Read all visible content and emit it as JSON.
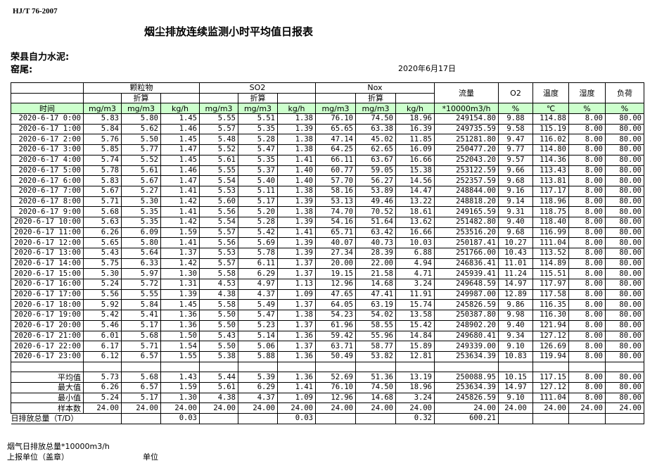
{
  "header": {
    "standard": "HJ/T  76-2007",
    "title": "烟尘排放连续监测小时平均值日报表",
    "company": "荣县自力水泥:",
    "kiln": "窑尾:",
    "date": "2020年6月17日"
  },
  "table": {
    "groups": {
      "particulate": "颗粒物",
      "so2": "SO2",
      "nox": "Nox",
      "converted": "折算",
      "flow": "流量",
      "o2": "O2",
      "temp": "温度",
      "humidity": "湿度",
      "load": "负荷"
    },
    "units": [
      "时间",
      "mg/m3",
      "mg/m3",
      "kg/h",
      "mg/m3",
      "mg/m3",
      "kg/h",
      "mg/m3",
      "mg/m3",
      "kg/h",
      "*10000m3/h",
      "%",
      "℃",
      "%",
      "%"
    ],
    "rows": [
      [
        "2020-6-17 0:00",
        "5.83",
        "5.80",
        "1.45",
        "5.55",
        "5.51",
        "1.38",
        "76.10",
        "74.50",
        "18.96",
        "249154.80",
        "9.88",
        "114.88",
        "8.00",
        "80.00"
      ],
      [
        "2020-6-17 1:00",
        "5.84",
        "5.62",
        "1.46",
        "5.57",
        "5.35",
        "1.39",
        "65.65",
        "63.38",
        "16.39",
        "249735.59",
        "9.58",
        "115.19",
        "8.00",
        "80.00"
      ],
      [
        "2020-6-17 2:00",
        "5.76",
        "5.50",
        "1.45",
        "5.48",
        "5.28",
        "1.38",
        "47.14",
        "45.02",
        "11.85",
        "251281.80",
        "9.47",
        "116.02",
        "8.00",
        "80.00"
      ],
      [
        "2020-6-17 3:00",
        "5.85",
        "5.77",
        "1.47",
        "5.52",
        "5.47",
        "1.38",
        "64.25",
        "62.65",
        "16.09",
        "250477.20",
        "9.77",
        "114.80",
        "8.00",
        "80.00"
      ],
      [
        "2020-6-17 4:00",
        "5.74",
        "5.52",
        "1.45",
        "5.61",
        "5.35",
        "1.41",
        "66.11",
        "63.67",
        "16.66",
        "252043.20",
        "9.57",
        "114.36",
        "8.00",
        "80.00"
      ],
      [
        "2020-6-17 5:00",
        "5.78",
        "5.61",
        "1.46",
        "5.55",
        "5.37",
        "1.40",
        "60.77",
        "59.05",
        "15.38",
        "253122.59",
        "9.66",
        "113.43",
        "8.00",
        "80.00"
      ],
      [
        "2020-6-17 6:00",
        "5.83",
        "5.67",
        "1.47",
        "5.54",
        "5.40",
        "1.40",
        "57.70",
        "56.27",
        "14.56",
        "252357.59",
        "9.68",
        "113.81",
        "8.00",
        "80.00"
      ],
      [
        "2020-6-17 7:00",
        "5.67",
        "5.27",
        "1.41",
        "5.53",
        "5.11",
        "1.38",
        "58.16",
        "53.89",
        "14.47",
        "248844.00",
        "9.16",
        "117.17",
        "8.00",
        "80.00"
      ],
      [
        "2020-6-17 8:00",
        "5.71",
        "5.30",
        "1.42",
        "5.60",
        "5.17",
        "1.39",
        "53.13",
        "49.46",
        "13.22",
        "248818.20",
        "9.14",
        "118.96",
        "8.00",
        "80.00"
      ],
      [
        "2020-6-17 9:00",
        "5.68",
        "5.35",
        "1.41",
        "5.56",
        "5.20",
        "1.38",
        "74.70",
        "70.52",
        "18.61",
        "249165.59",
        "9.31",
        "118.75",
        "8.00",
        "80.00"
      ],
      [
        "2020-6-17 10:00",
        "5.63",
        "5.35",
        "1.42",
        "5.54",
        "5.28",
        "1.39",
        "54.16",
        "51.64",
        "13.62",
        "251482.80",
        "9.40",
        "118.40",
        "8.00",
        "80.00"
      ],
      [
        "2020-6-17 11:00",
        "6.26",
        "6.09",
        "1.59",
        "5.57",
        "5.42",
        "1.41",
        "65.71",
        "63.42",
        "16.66",
        "253516.20",
        "9.68",
        "116.99",
        "8.00",
        "80.00"
      ],
      [
        "2020-6-17 12:00",
        "5.65",
        "5.80",
        "1.41",
        "5.56",
        "5.69",
        "1.39",
        "40.07",
        "40.73",
        "10.03",
        "250187.41",
        "10.27",
        "111.04",
        "8.00",
        "80.00"
      ],
      [
        "2020-6-17 13:00",
        "5.43",
        "5.64",
        "1.37",
        "5.53",
        "5.78",
        "1.39",
        "27.34",
        "28.39",
        "6.88",
        "251766.00",
        "10.43",
        "113.52",
        "8.00",
        "80.00"
      ],
      [
        "2020-6-17 14:00",
        "5.75",
        "6.33",
        "1.42",
        "5.57",
        "6.11",
        "1.37",
        "20.00",
        "22.00",
        "4.94",
        "246836.41",
        "11.01",
        "114.89",
        "8.00",
        "80.00"
      ],
      [
        "2020-6-17 15:00",
        "5.30",
        "5.97",
        "1.30",
        "5.58",
        "6.29",
        "1.37",
        "19.15",
        "21.58",
        "4.71",
        "245939.41",
        "11.24",
        "115.51",
        "8.00",
        "80.00"
      ],
      [
        "2020-6-17 16:00",
        "5.24",
        "5.72",
        "1.31",
        "4.53",
        "4.97",
        "1.13",
        "12.96",
        "14.68",
        "3.24",
        "249648.59",
        "14.97",
        "117.97",
        "8.00",
        "80.00"
      ],
      [
        "2020-6-17 17:00",
        "5.56",
        "5.55",
        "1.39",
        "4.38",
        "4.37",
        "1.09",
        "47.65",
        "47.41",
        "11.91",
        "249987.00",
        "12.89",
        "117.58",
        "8.00",
        "80.00"
      ],
      [
        "2020-6-17 18:00",
        "5.92",
        "5.84",
        "1.45",
        "5.58",
        "5.49",
        "1.37",
        "64.05",
        "63.19",
        "15.74",
        "245826.59",
        "9.86",
        "116.35",
        "8.00",
        "80.00"
      ],
      [
        "2020-6-17 19:00",
        "5.42",
        "5.41",
        "1.36",
        "5.50",
        "5.47",
        "1.38",
        "54.23",
        "54.02",
        "13.58",
        "250387.80",
        "9.98",
        "116.30",
        "8.00",
        "80.00"
      ],
      [
        "2020-6-17 20:00",
        "5.46",
        "5.17",
        "1.36",
        "5.50",
        "5.23",
        "1.37",
        "61.96",
        "58.55",
        "15.42",
        "248902.20",
        "9.40",
        "121.94",
        "8.00",
        "80.00"
      ],
      [
        "2020-6-17 21:00",
        "6.01",
        "5.68",
        "1.50",
        "5.43",
        "5.14",
        "1.36",
        "59.42",
        "55.96",
        "14.84",
        "249680.41",
        "9.34",
        "127.12",
        "8.00",
        "80.00"
      ],
      [
        "2020-6-17 22:00",
        "6.17",
        "5.71",
        "1.54",
        "5.50",
        "5.06",
        "1.37",
        "63.71",
        "58.77",
        "15.89",
        "249339.00",
        "9.10",
        "126.69",
        "8.00",
        "80.00"
      ],
      [
        "2020-6-17 23:00",
        "6.12",
        "6.57",
        "1.55",
        "5.38",
        "5.88",
        "1.36",
        "50.49",
        "53.82",
        "12.81",
        "253634.39",
        "10.83",
        "119.94",
        "8.00",
        "80.00"
      ]
    ],
    "stats": [
      [
        "平均值",
        "5.73",
        "5.68",
        "1.43",
        "5.44",
        "5.39",
        "1.36",
        "52.69",
        "51.36",
        "13.19",
        "250088.95",
        "10.15",
        "117.15",
        "8.00",
        "80.00"
      ],
      [
        "最大值",
        "6.26",
        "6.57",
        "1.59",
        "5.61",
        "6.29",
        "1.41",
        "76.10",
        "74.50",
        "18.96",
        "253634.39",
        "14.97",
        "127.12",
        "8.00",
        "80.00"
      ],
      [
        "最小值",
        "5.24",
        "5.17",
        "1.30",
        "4.38",
        "4.37",
        "1.09",
        "12.96",
        "14.68",
        "3.24",
        "245826.59",
        "9.10",
        "111.04",
        "8.00",
        "80.00"
      ],
      [
        "样本数",
        "24.00",
        "24.00",
        "24.00",
        "24.00",
        "24.00",
        "24.00",
        "24.00",
        "24.00",
        "24.00",
        "24.00",
        "24.00",
        "24.00",
        "24.00",
        "24.00"
      ]
    ],
    "daily_total": {
      "label": "日排放总量（T/D）",
      "values": [
        "",
        "0.03",
        "",
        "",
        "0.03",
        "",
        "",
        "0.32",
        "600.21",
        "",
        "",
        "",
        ""
      ]
    }
  },
  "footer": {
    "flue_gas_total": "烟气日排放总量*10000m3/h",
    "reporting_unit": "上报单位（盖章）",
    "unit": "单位"
  }
}
